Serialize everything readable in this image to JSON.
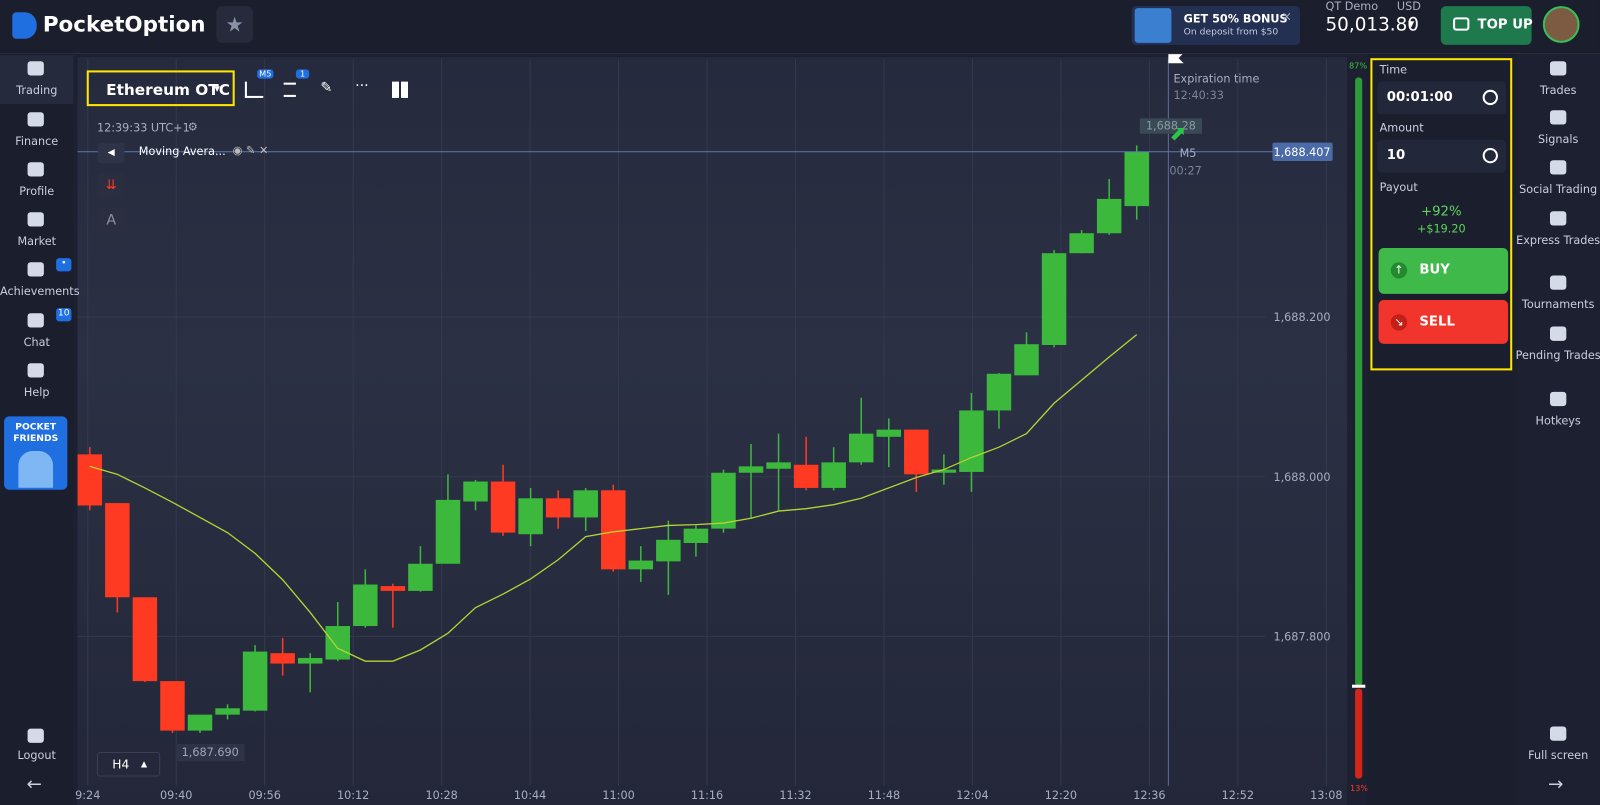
{
  "header": {
    "logo": "PocketOption",
    "bonus_title": "GET 50% BONUS",
    "bonus_sub": "On deposit from $50",
    "account": "QT Demo",
    "currency": "USD",
    "balance": "50,013.80",
    "topup": "TOP UP"
  },
  "left_nav": {
    "items": [
      "Trading",
      "Finance",
      "Profile",
      "Market",
      "Achievements",
      "Chat",
      "Help"
    ],
    "chat_badge": "10",
    "promo": "POCKET FRIENDS",
    "logout": "Logout"
  },
  "toolbar": {
    "asset": "Ethereum OTC",
    "timeframe_badge": "M5",
    "indicator_badge": "1",
    "clock": "12:39:33 UTC+1",
    "indicator": "Moving Avera...",
    "text_tool": "A",
    "timeframe": "H4"
  },
  "chart": {
    "type": "candlestick",
    "candles": [
      {
        "open": 1688.028,
        "high": 1688.037,
        "low": 1687.958,
        "close": 1687.964
      },
      {
        "open": 1687.967,
        "high": 1687.967,
        "low": 1687.83,
        "close": 1687.849
      },
      {
        "open": 1687.849,
        "high": 1687.849,
        "low": 1687.743,
        "close": 1687.744
      },
      {
        "open": 1687.744,
        "high": 1687.744,
        "low": 1687.679,
        "close": 1687.682
      },
      {
        "open": 1687.682,
        "high": 1687.702,
        "low": 1687.679,
        "close": 1687.702
      },
      {
        "open": 1687.702,
        "high": 1687.715,
        "low": 1687.696,
        "close": 1687.71
      },
      {
        "open": 1687.707,
        "high": 1687.789,
        "low": 1687.706,
        "close": 1687.781
      },
      {
        "open": 1687.779,
        "high": 1687.798,
        "low": 1687.751,
        "close": 1687.766
      },
      {
        "open": 1687.766,
        "high": 1687.779,
        "low": 1687.73,
        "close": 1687.773
      },
      {
        "open": 1687.771,
        "high": 1687.843,
        "low": 1687.769,
        "close": 1687.813
      },
      {
        "open": 1687.813,
        "high": 1687.884,
        "low": 1687.811,
        "close": 1687.865
      },
      {
        "open": 1687.863,
        "high": 1687.866,
        "low": 1687.811,
        "close": 1687.857
      },
      {
        "open": 1687.857,
        "high": 1687.913,
        "low": 1687.856,
        "close": 1687.891
      },
      {
        "open": 1687.891,
        "high": 1688.003,
        "low": 1687.891,
        "close": 1687.971
      },
      {
        "open": 1687.969,
        "high": 1687.996,
        "low": 1687.958,
        "close": 1687.994
      },
      {
        "open": 1687.994,
        "high": 1688.015,
        "low": 1687.926,
        "close": 1687.93
      },
      {
        "open": 1687.928,
        "high": 1687.986,
        "low": 1687.913,
        "close": 1687.973
      },
      {
        "open": 1687.973,
        "high": 1687.983,
        "low": 1687.935,
        "close": 1687.949
      },
      {
        "open": 1687.949,
        "high": 1687.986,
        "low": 1687.932,
        "close": 1687.983
      },
      {
        "open": 1687.983,
        "high": 1687.99,
        "low": 1687.881,
        "close": 1687.884
      },
      {
        "open": 1687.884,
        "high": 1687.913,
        "low": 1687.868,
        "close": 1687.895
      },
      {
        "open": 1687.894,
        "high": 1687.945,
        "low": 1687.852,
        "close": 1687.921
      },
      {
        "open": 1687.917,
        "high": 1687.939,
        "low": 1687.9,
        "close": 1687.935
      },
      {
        "open": 1687.935,
        "high": 1688.009,
        "low": 1687.93,
        "close": 1688.005
      },
      {
        "open": 1688.005,
        "high": 1688.041,
        "low": 1687.948,
        "close": 1688.013
      },
      {
        "open": 1688.01,
        "high": 1688.054,
        "low": 1687.958,
        "close": 1688.018
      },
      {
        "open": 1688.015,
        "high": 1688.05,
        "low": 1687.983,
        "close": 1687.986
      },
      {
        "open": 1687.986,
        "high": 1688.037,
        "low": 1687.983,
        "close": 1688.018
      },
      {
        "open": 1688.018,
        "high": 1688.099,
        "low": 1688.015,
        "close": 1688.054
      },
      {
        "open": 1688.05,
        "high": 1688.073,
        "low": 1688.012,
        "close": 1688.059
      },
      {
        "open": 1688.059,
        "high": 1688.059,
        "low": 1687.981,
        "close": 1688.003
      },
      {
        "open": 1688.005,
        "high": 1688.028,
        "low": 1687.99,
        "close": 1688.009
      },
      {
        "open": 1688.006,
        "high": 1688.105,
        "low": 1687.981,
        "close": 1688.083
      },
      {
        "open": 1688.083,
        "high": 1688.13,
        "low": 1688.06,
        "close": 1688.129
      },
      {
        "open": 1688.127,
        "high": 1688.181,
        "low": 1688.127,
        "close": 1688.166
      },
      {
        "open": 1688.165,
        "high": 1688.284,
        "low": 1688.162,
        "close": 1688.28
      },
      {
        "open": 1688.28,
        "high": 1688.309,
        "low": 1688.28,
        "close": 1688.305
      },
      {
        "open": 1688.305,
        "high": 1688.373,
        "low": 1688.303,
        "close": 1688.348
      },
      {
        "open": 1688.339,
        "high": 1688.415,
        "low": 1688.322,
        "close": 1688.407
      }
    ],
    "ma": [
      1688.013,
      1688.003,
      1687.986,
      1687.968,
      1687.949,
      1687.93,
      1687.904,
      1687.871,
      1687.83,
      1687.785,
      1687.769,
      1687.769,
      1687.783,
      1687.804,
      1687.836,
      1687.853,
      1687.872,
      1687.896,
      1687.925,
      1687.931,
      1687.935,
      1687.939,
      1687.94,
      1687.942,
      1687.948,
      1687.957,
      1687.96,
      1687.965,
      1687.973,
      1687.986,
      1687.999,
      1688.009,
      1688.024,
      1688.037,
      1688.054,
      1688.092,
      1688.121,
      1688.15,
      1688.178
    ],
    "up_color": "#3cb83c",
    "down_color": "#ff3a22",
    "ma_color": "#b5d334",
    "ylim": [
      1687.613,
      1688.523
    ],
    "yticks": [
      {
        "value": 1688.2,
        "label": "1,688.200"
      },
      {
        "value": 1688.0,
        "label": "1,688.000"
      },
      {
        "value": 1687.8,
        "label": "1,687.800"
      }
    ],
    "xticks": [
      "9:24",
      "09:40",
      "09:56",
      "10:12",
      "10:28",
      "10:44",
      "11:00",
      "11:16",
      "11:32",
      "11:48",
      "12:04",
      "12:20",
      "12:36",
      "12:52",
      "13:08"
    ],
    "current_price": {
      "value": 1688.407,
      "label": "1,688.407"
    },
    "low_label": "1,687.690",
    "ghost_price": "1,688.28",
    "expiration_label": "Expiration time",
    "expiration_time": "12:40:33",
    "timer_tf": "M5",
    "timer": "00:27"
  },
  "sentiment": {
    "up": "87%",
    "down": "13%"
  },
  "trade_panel": {
    "time_label": "Time",
    "time": "00:01:00",
    "amount_label": "Amount",
    "amount": "10",
    "payout_label": "Payout",
    "payout": "+92%",
    "profit": "+$19.20",
    "buy": "BUY",
    "sell": "SELL"
  },
  "right_nav": {
    "items": [
      "Trades",
      "Signals",
      "Social Trading",
      "Express Trades",
      "Tournaments",
      "Pending Trades",
      "Hotkeys"
    ],
    "fullscreen": "Full screen"
  }
}
